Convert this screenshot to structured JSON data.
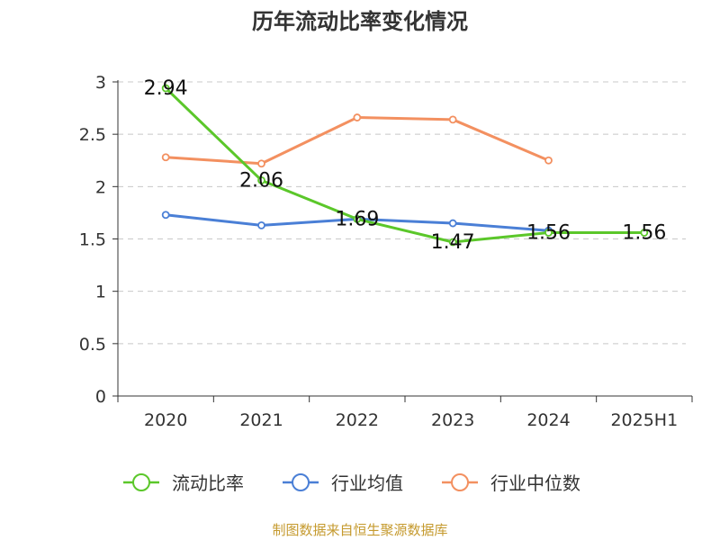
{
  "chart_data": {
    "type": "line",
    "title": "历年流动比率变化情况",
    "categories": [
      "2020",
      "2021",
      "2022",
      "2023",
      "2024",
      "2025H1"
    ],
    "ylim": [
      0,
      3
    ],
    "y_ticks": [
      "0",
      "0.5",
      "1",
      "1.5",
      "2",
      "2.5",
      "3"
    ],
    "grid": true,
    "legend_position": "bottom",
    "series": [
      {
        "name": "流动比率",
        "color": "#5bc72a",
        "values": [
          2.94,
          2.06,
          1.69,
          1.47,
          1.56,
          1.56
        ],
        "labels": [
          "2.94",
          "2.06",
          "1.69",
          "1.47",
          "1.56",
          "1.56"
        ]
      },
      {
        "name": "行业均值",
        "color": "#4a7fd6",
        "values": [
          1.73,
          1.63,
          1.69,
          1.65,
          1.58,
          null
        ]
      },
      {
        "name": "行业中位数",
        "color": "#f39060",
        "values": [
          2.28,
          2.22,
          2.66,
          2.64,
          2.25,
          null
        ]
      }
    ]
  },
  "source": "制图数据来自恒生聚源数据库"
}
